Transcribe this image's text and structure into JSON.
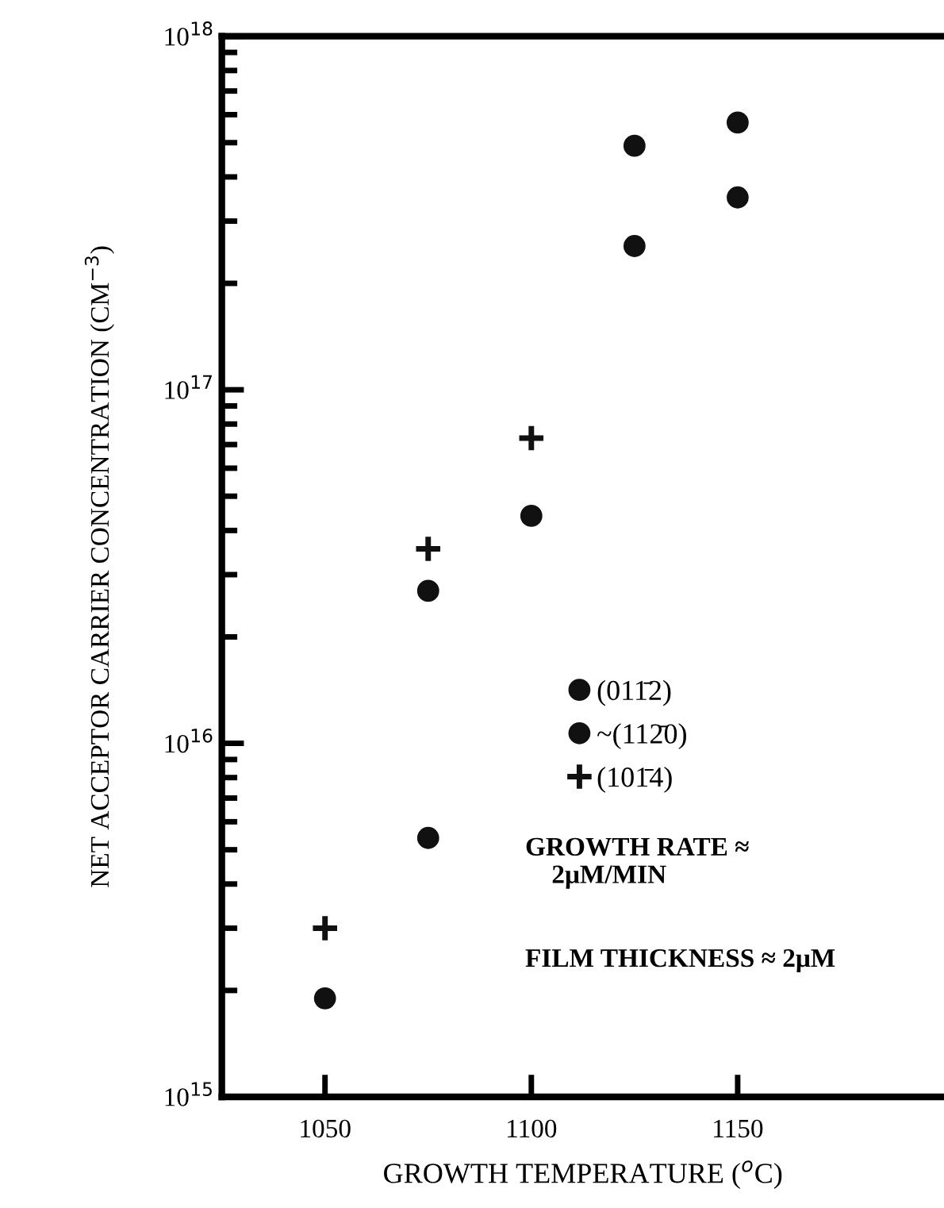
{
  "chart_data": {
    "type": "scatter",
    "xlabel": "GROWTH TEMPERATURE ($^{o}$C)",
    "ylabel": "NET ACCEPTOR CARRIER CONCENTRATION (CM$^{−3}$)",
    "series": [
      {
        "name": "(011̄2)",
        "color": "#111111",
        "marker": "circle",
        "x": [
          1075,
          1125,
          1150
        ],
        "values": [
          2.7e+16,
          4.9e+17,
          5.7e+17
        ]
      },
      {
        "name": "~(112̄0)",
        "color": "#111111",
        "marker": "circle",
        "x": [
          1050,
          1075,
          1100,
          1125,
          1150
        ],
        "values": [
          1900000000000000.0,
          5400000000000000.0,
          4.4e+16,
          2.55e+17,
          3.5e+17
        ]
      },
      {
        "name": "(101̄4)",
        "color": "#111111",
        "marker": "cross",
        "x": [
          1050,
          1075,
          1100
        ],
        "values": [
          3000000000000000.0,
          3.55e+16,
          7.3e+16
        ]
      }
    ],
    "log": "y",
    "xlim": [
      1025,
      1200
    ],
    "xticks": [
      1050,
      1100,
      1150
    ],
    "ylim": [
      1000000000000000.0,
      1e+18
    ],
    "yticks": [
      {
        "value": 1000000000000000.0,
        "label": "10$^{15}$"
      },
      {
        "value": 1e+16,
        "label": "10$^{16}$"
      },
      {
        "value": 1e+17,
        "label": "10$^{17}$"
      },
      {
        "value": 1e+18,
        "label": "10$^{18}$"
      }
    ],
    "grid": false,
    "legend": "center",
    "annotations": [
      "GROWTH RATE ≈\n    2μM/MIN",
      "FILM THICKNESS ≈ 2μM"
    ]
  }
}
